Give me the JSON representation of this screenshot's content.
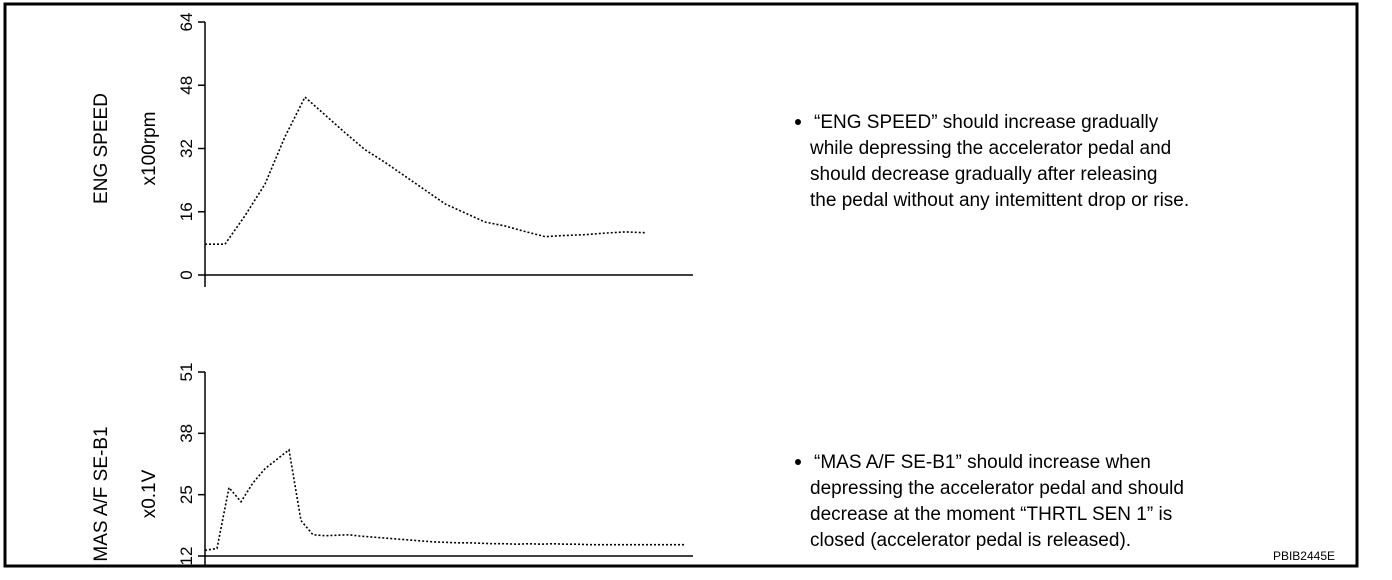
{
  "chart_data": [
    {
      "type": "line",
      "ylabel": "ENG SPEED",
      "unit": "x100rpm",
      "ylim": [
        0,
        64
      ],
      "yticks": [
        0,
        16,
        32,
        48,
        64
      ],
      "series": [
        {
          "color": "#000000",
          "values": [
            7.8,
            7.8,
            15,
            23,
            35,
            45,
            40.5,
            36,
            31.7,
            28.5,
            25,
            21.5,
            18,
            15.7,
            13.4,
            12.4,
            11,
            9.7,
            10,
            10.2,
            10.6,
            10.9,
            10.7
          ]
        }
      ],
      "note": [
        "“ENG SPEED” should increase gradually",
        "while depressing the accelerator pedal and",
        "should decrease gradually after releasing",
        "the pedal without any intemittent drop or rise."
      ]
    },
    {
      "type": "line",
      "ylabel": "MAS A/F SE-B1",
      "unit": "x0.1V",
      "ylim": [
        12,
        51
      ],
      "yticks": [
        12,
        25,
        38,
        51
      ],
      "series": [
        {
          "color": "#000000",
          "values": [
            13.2,
            13.6,
            26.5,
            23.5,
            27.5,
            30.5,
            32.5,
            34.5,
            19.5,
            16.5,
            16.3,
            16.4,
            16.5,
            16.2,
            16,
            15.8,
            15.6,
            15.4,
            15.2,
            15,
            14.9,
            14.8,
            14.8,
            14.7,
            14.6,
            14.6,
            14.5,
            14.6,
            14.5,
            14.6,
            14.5,
            14.5,
            14.4,
            14.4,
            14.4,
            14.4,
            14.4,
            14.4,
            14.4,
            14.4,
            14.4
          ]
        }
      ],
      "note": [
        "“MAS A/F SE-B1” should increase when",
        "depressing the accelerator pedal and  should",
        "decrease at the moment “THRTL SEN 1” is",
        "closed (accelerator pedal is released)."
      ]
    }
  ],
  "figure_code": "PBIB2445E"
}
